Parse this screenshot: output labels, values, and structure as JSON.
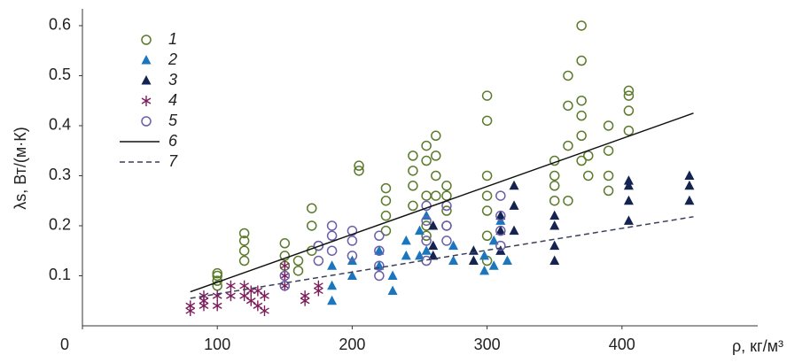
{
  "chart_data": {
    "type": "scatter",
    "x_label": "ρ, кг/м³",
    "y_label": "λs, Вт/(м·К)",
    "xlim": [
      0,
      500
    ],
    "ylim": [
      0,
      0.63
    ],
    "xticks": [
      0,
      100,
      200,
      300,
      400
    ],
    "yticks": [
      0.1,
      0.2,
      0.3,
      0.4,
      0.5,
      0.6
    ],
    "legend": "upper left",
    "series": [
      {
        "name": "1",
        "color": "#5b7a2b",
        "marker": "circle",
        "x": [
          100,
          100,
          100,
          100,
          120,
          120,
          120,
          120,
          150,
          150,
          150,
          160,
          160,
          170,
          170,
          170,
          175,
          205,
          205,
          225,
          225,
          225,
          225,
          245,
          245,
          245,
          245,
          255,
          255,
          255,
          255,
          255,
          262,
          262,
          262,
          262,
          270,
          270,
          270,
          270,
          300,
          300,
          300,
          300,
          300,
          300,
          300,
          350,
          350,
          350,
          350,
          360,
          360,
          360,
          360,
          370,
          370,
          370,
          370,
          370,
          370,
          375,
          375,
          390,
          390,
          390,
          390,
          405,
          405,
          405,
          405
        ],
        "values": [
          0.08,
          0.09,
          0.1,
          0.105,
          0.13,
          0.15,
          0.17,
          0.185,
          0.12,
          0.14,
          0.165,
          0.11,
          0.13,
          0.15,
          0.2,
          0.235,
          0.16,
          0.31,
          0.32,
          0.19,
          0.22,
          0.25,
          0.275,
          0.24,
          0.28,
          0.31,
          0.34,
          0.18,
          0.2,
          0.26,
          0.33,
          0.36,
          0.26,
          0.3,
          0.34,
          0.38,
          0.2,
          0.23,
          0.26,
          0.28,
          0.13,
          0.18,
          0.23,
          0.26,
          0.3,
          0.41,
          0.46,
          0.25,
          0.28,
          0.3,
          0.33,
          0.25,
          0.36,
          0.44,
          0.5,
          0.33,
          0.38,
          0.42,
          0.45,
          0.53,
          0.6,
          0.3,
          0.34,
          0.27,
          0.3,
          0.35,
          0.4,
          0.39,
          0.43,
          0.46,
          0.47
        ]
      },
      {
        "name": "2",
        "color": "#1b76bd",
        "marker": "triangle",
        "x": [
          185,
          185,
          185,
          200,
          200,
          220,
          220,
          230,
          230,
          240,
          240,
          250,
          250,
          255,
          255,
          275,
          275,
          298,
          298,
          305,
          305,
          310,
          310,
          315
        ],
        "values": [
          0.05,
          0.08,
          0.12,
          0.1,
          0.13,
          0.12,
          0.15,
          0.07,
          0.1,
          0.14,
          0.17,
          0.14,
          0.19,
          0.15,
          0.22,
          0.13,
          0.16,
          0.11,
          0.14,
          0.12,
          0.17,
          0.15,
          0.21,
          0.13
        ]
      },
      {
        "name": "3",
        "color": "#14234f",
        "marker": "triangle",
        "x": [
          260,
          260,
          260,
          290,
          290,
          310,
          310,
          310,
          320,
          320,
          320,
          350,
          350,
          350,
          350,
          405,
          405,
          405,
          405,
          450,
          450,
          450
        ],
        "values": [
          0.14,
          0.16,
          0.2,
          0.13,
          0.15,
          0.15,
          0.19,
          0.22,
          0.19,
          0.24,
          0.28,
          0.13,
          0.16,
          0.2,
          0.22,
          0.21,
          0.25,
          0.28,
          0.29,
          0.25,
          0.28,
          0.3
        ]
      },
      {
        "name": "4",
        "color": "#7b1d5b",
        "marker": "asterisk",
        "x": [
          80,
          80,
          90,
          90,
          90,
          100,
          100,
          110,
          110,
          120,
          120,
          125,
          125,
          130,
          130,
          135,
          135,
          150,
          150,
          150,
          165,
          165,
          175,
          175
        ],
        "values": [
          0.03,
          0.04,
          0.04,
          0.05,
          0.06,
          0.04,
          0.06,
          0.06,
          0.08,
          0.06,
          0.08,
          0.05,
          0.07,
          0.04,
          0.07,
          0.03,
          0.06,
          0.08,
          0.1,
          0.12,
          0.05,
          0.06,
          0.07,
          0.08
        ]
      },
      {
        "name": "5",
        "color": "#6b5fa9",
        "marker": "circle",
        "x": [
          150,
          150,
          175,
          175,
          185,
          185,
          185,
          200,
          200,
          200,
          220,
          220,
          220,
          220,
          255,
          255,
          255,
          255,
          270,
          270,
          270,
          310,
          310,
          310,
          310
        ],
        "values": [
          0.08,
          0.1,
          0.13,
          0.16,
          0.15,
          0.18,
          0.2,
          0.14,
          0.17,
          0.19,
          0.1,
          0.12,
          0.15,
          0.18,
          0.13,
          0.17,
          0.21,
          0.24,
          0.17,
          0.2,
          0.24,
          0.16,
          0.19,
          0.22,
          0.26
        ]
      },
      {
        "name": "6",
        "color": "#111111",
        "marker": "line",
        "x": [
          80,
          453
        ],
        "values": [
          0.068,
          0.425
        ]
      },
      {
        "name": "7",
        "color": "#3a3f5a",
        "marker": "dashed",
        "x": [
          80,
          453
        ],
        "values": [
          0.055,
          0.218
        ]
      }
    ]
  }
}
